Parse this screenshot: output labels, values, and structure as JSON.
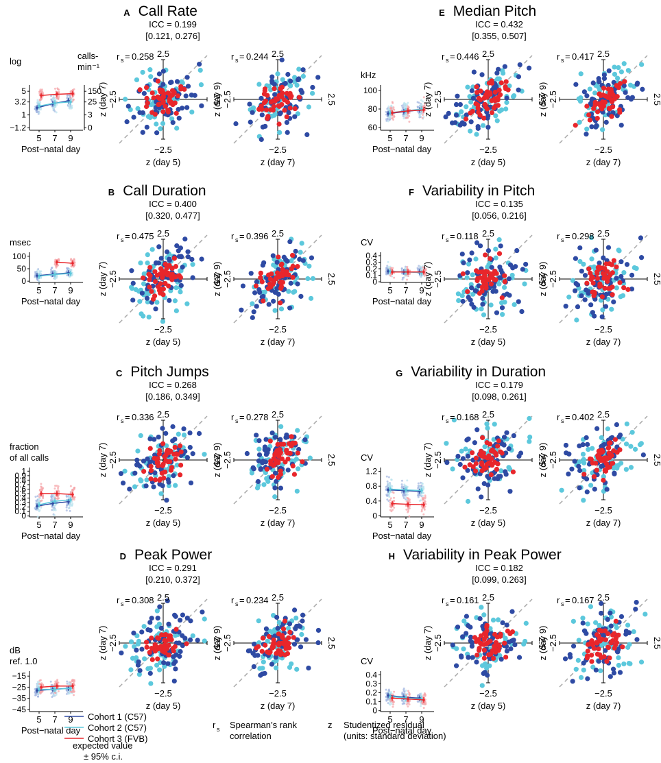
{
  "colors": {
    "cohort1": "#2e4aa3",
    "cohort2": "#5cc8dc",
    "cohort3": "#e8262b",
    "cohort1_light": "#9fb3e0",
    "cohort2_light": "#b9e3ee",
    "cohort3_light": "#f5a3a6",
    "diagonal": "#aaaaaa",
    "axis": "#000000"
  },
  "common": {
    "xlabel_days": "Post−natal day",
    "tick_pos": "2.5",
    "tick_neg": "−2.5",
    "rs_label": "r",
    "rs_sub": "s",
    "z_day5": "z (day 5)",
    "z_day7": "z (day 7)",
    "z_day9": "z (day 9)"
  },
  "legend": {
    "cohorts": [
      {
        "label": "Cohort 1 (C57)",
        "color_key": "cohort1"
      },
      {
        "label": "Cohort 2 (C57)",
        "color_key": "cohort2"
      },
      {
        "label": "Cohort 3 (FVB)",
        "color_key": "cohort3"
      }
    ],
    "expected_line1": "expected value",
    "expected_line2": "± 95% c.i.",
    "rs_symbol": "r",
    "rs_sub": "s",
    "rs_line1": "Spearman’s rank",
    "rs_line2": "correlation",
    "z_symbol": "z",
    "z_line1": "Studentized residual",
    "z_line2": "(units: standard deviation)"
  },
  "chart_data": [
    {
      "type": "scatter",
      "letter": "A",
      "title": "Call Rate",
      "icc": "ICC = 0.199",
      "ci": "[0.121, 0.276]",
      "unit_lines": [
        "log"
      ],
      "right_unit_lines": [
        "calls-",
        "min⁻¹"
      ],
      "yticks": [
        "5",
        "3.2",
        "1",
        "−1.2"
      ],
      "ytick_values": [
        5,
        3.2,
        1,
        -1.2
      ],
      "right_yticks": [
        "150",
        "25",
        "3",
        "0"
      ],
      "right_ytick_values": [
        5,
        3.2,
        1,
        -1.2
      ],
      "ylim": [
        -1.6,
        5.6
      ],
      "xticks": [
        "5",
        "7",
        "9"
      ],
      "means": {
        "cohort1": [
          2.2,
          2.9,
          3.4
        ],
        "cohort2": [
          2.5,
          3.0,
          3.2
        ],
        "cohort3": [
          4.3,
          4.5,
          4.6
        ]
      },
      "rs_57": "0.258",
      "rs_79": "0.244",
      "corr_57": 0.26,
      "corr_79": 0.24
    },
    {
      "type": "scatter",
      "letter": "B",
      "title": "Call Duration",
      "icc": "ICC = 0.400",
      "ci": "[0.320, 0.477]",
      "unit_lines": [
        "msec"
      ],
      "yticks": [
        "100",
        "50",
        "0"
      ],
      "ytick_values": [
        100,
        50,
        0
      ],
      "ylim": [
        -5,
        105
      ],
      "xticks": [
        "5",
        "7",
        "9"
      ],
      "means": {
        "cohort1": [
          22,
          28,
          33
        ],
        "cohort2": [
          20,
          27,
          31
        ],
        "cohort3": [
          null,
          76,
          72
        ]
      },
      "rs_57": "0.475",
      "rs_79": "0.396",
      "corr_57": 0.47,
      "corr_79": 0.4
    },
    {
      "type": "scatter",
      "letter": "C",
      "title": "Pitch Jumps",
      "icc": "ICC = 0.268",
      "ci": "[0.186, 0.349]",
      "unit_lines": [
        "fraction",
        "of all calls"
      ],
      "yticks": [
        "1",
        "0.9",
        "0.8",
        "0.7",
        "0.6",
        "0.5",
        "0.4",
        "0.3",
        "0.2",
        "0.1",
        "0"
      ],
      "ytick_values": [
        1,
        0.9,
        0.8,
        0.7,
        0.6,
        0.5,
        0.4,
        0.3,
        0.2,
        0.1,
        0
      ],
      "ylim": [
        -0.02,
        1.02
      ],
      "xticks": [
        "5",
        "7",
        "9"
      ],
      "means": {
        "cohort1": [
          0.22,
          0.28,
          0.32
        ],
        "cohort2": [
          0.25,
          0.33,
          0.36
        ],
        "cohort3": [
          0.5,
          0.5,
          0.48
        ]
      },
      "rs_57": "0.336",
      "rs_79": "0.278",
      "corr_57": 0.34,
      "corr_79": 0.28
    },
    {
      "type": "scatter",
      "letter": "D",
      "title": "Peak Power",
      "icc": "ICC = 0.291",
      "ci": "[0.210, 0.372]",
      "unit_lines": [
        "dB",
        "ref. 1.0"
      ],
      "yticks": [
        "−15",
        "−25",
        "−35",
        "−45"
      ],
      "ytick_values": [
        -15,
        -25,
        -35,
        -45
      ],
      "ylim": [
        -47,
        -13
      ],
      "xticks": [
        "5",
        "7",
        "9"
      ],
      "means": {
        "cohort1": [
          -28,
          -27,
          -26
        ],
        "cohort2": [
          -27,
          -27,
          -26
        ],
        "cohort3": [
          -25,
          -24,
          -24
        ]
      },
      "rs_57": "0.308",
      "rs_79": "0.234",
      "corr_57": 0.31,
      "corr_79": 0.23
    },
    {
      "type": "scatter",
      "letter": "E",
      "title": "Median Pitch",
      "icc": "ICC = 0.432",
      "ci": "[0.355, 0.507]",
      "unit_lines": [
        "kHz"
      ],
      "yticks": [
        "100",
        "80",
        "60"
      ],
      "ytick_values": [
        100,
        80,
        60
      ],
      "ylim": [
        57,
        103
      ],
      "xticks": [
        "5",
        "7",
        "9"
      ],
      "means": {
        "cohort1": [
          75,
          77,
          79
        ],
        "cohort2": [
          76,
          78,
          80
        ],
        "cohort3": [
          76,
          78,
          79
        ]
      },
      "rs_57": "0.446",
      "rs_79": "0.417",
      "corr_57": 0.45,
      "corr_79": 0.42
    },
    {
      "type": "scatter",
      "letter": "F",
      "title": "Variability in Pitch",
      "icc": "ICC = 0.135",
      "ci": "[0.056, 0.216]",
      "unit_lines": [
        "CV"
      ],
      "yticks": [
        "0.4",
        "0.3",
        "0.2",
        "0.1",
        "0"
      ],
      "ytick_values": [
        0.4,
        0.3,
        0.2,
        0.1,
        0
      ],
      "ylim": [
        -0.01,
        0.41
      ],
      "xticks": [
        "5",
        "7",
        "9"
      ],
      "means": {
        "cohort1": [
          0.16,
          0.15,
          0.15
        ],
        "cohort2": [
          0.16,
          0.15,
          0.14
        ],
        "cohort3": [
          0.15,
          0.15,
          0.15
        ]
      },
      "rs_57": "0.118",
      "rs_79": "0.298",
      "corr_57": 0.12,
      "corr_79": 0.3
    },
    {
      "type": "scatter",
      "letter": "G",
      "title": "Variability in Duration",
      "icc": "ICC = 0.179",
      "ci": "[0.098, 0.261]",
      "unit_lines": [
        "CV"
      ],
      "yticks": [
        "1.2",
        "0.8",
        "0.4",
        "0"
      ],
      "ytick_values": [
        1.2,
        0.8,
        0.4,
        0
      ],
      "ylim": [
        -0.03,
        1.23
      ],
      "xticks": [
        "5",
        "7",
        "9"
      ],
      "means": {
        "cohort1": [
          0.7,
          0.68,
          0.66
        ],
        "cohort2": [
          0.72,
          0.7,
          0.68
        ],
        "cohort3": [
          0.33,
          0.31,
          0.3
        ]
      },
      "rs_57": "0.168",
      "rs_79": "0.402",
      "corr_57": 0.17,
      "corr_79": 0.4
    },
    {
      "type": "scatter",
      "letter": "H",
      "title": "Variability in Peak Power",
      "icc": "ICC = 0.182",
      "ci": "[0.099, 0.263]",
      "unit_lines": [
        "CV"
      ],
      "yticks": [
        "0.4",
        "0.3",
        "0.2",
        "0.1",
        "0"
      ],
      "ytick_values": [
        0.4,
        0.3,
        0.2,
        0.1,
        0
      ],
      "ylim": [
        -0.01,
        0.41
      ],
      "xticks": [
        "5",
        "7",
        "9"
      ],
      "means": {
        "cohort1": [
          0.17,
          0.15,
          0.14
        ],
        "cohort2": [
          0.16,
          0.14,
          0.13
        ],
        "cohort3": [
          0.14,
          0.13,
          0.12
        ]
      },
      "rs_57": "0.161",
      "rs_79": "0.167",
      "corr_57": 0.16,
      "corr_79": 0.17
    }
  ]
}
